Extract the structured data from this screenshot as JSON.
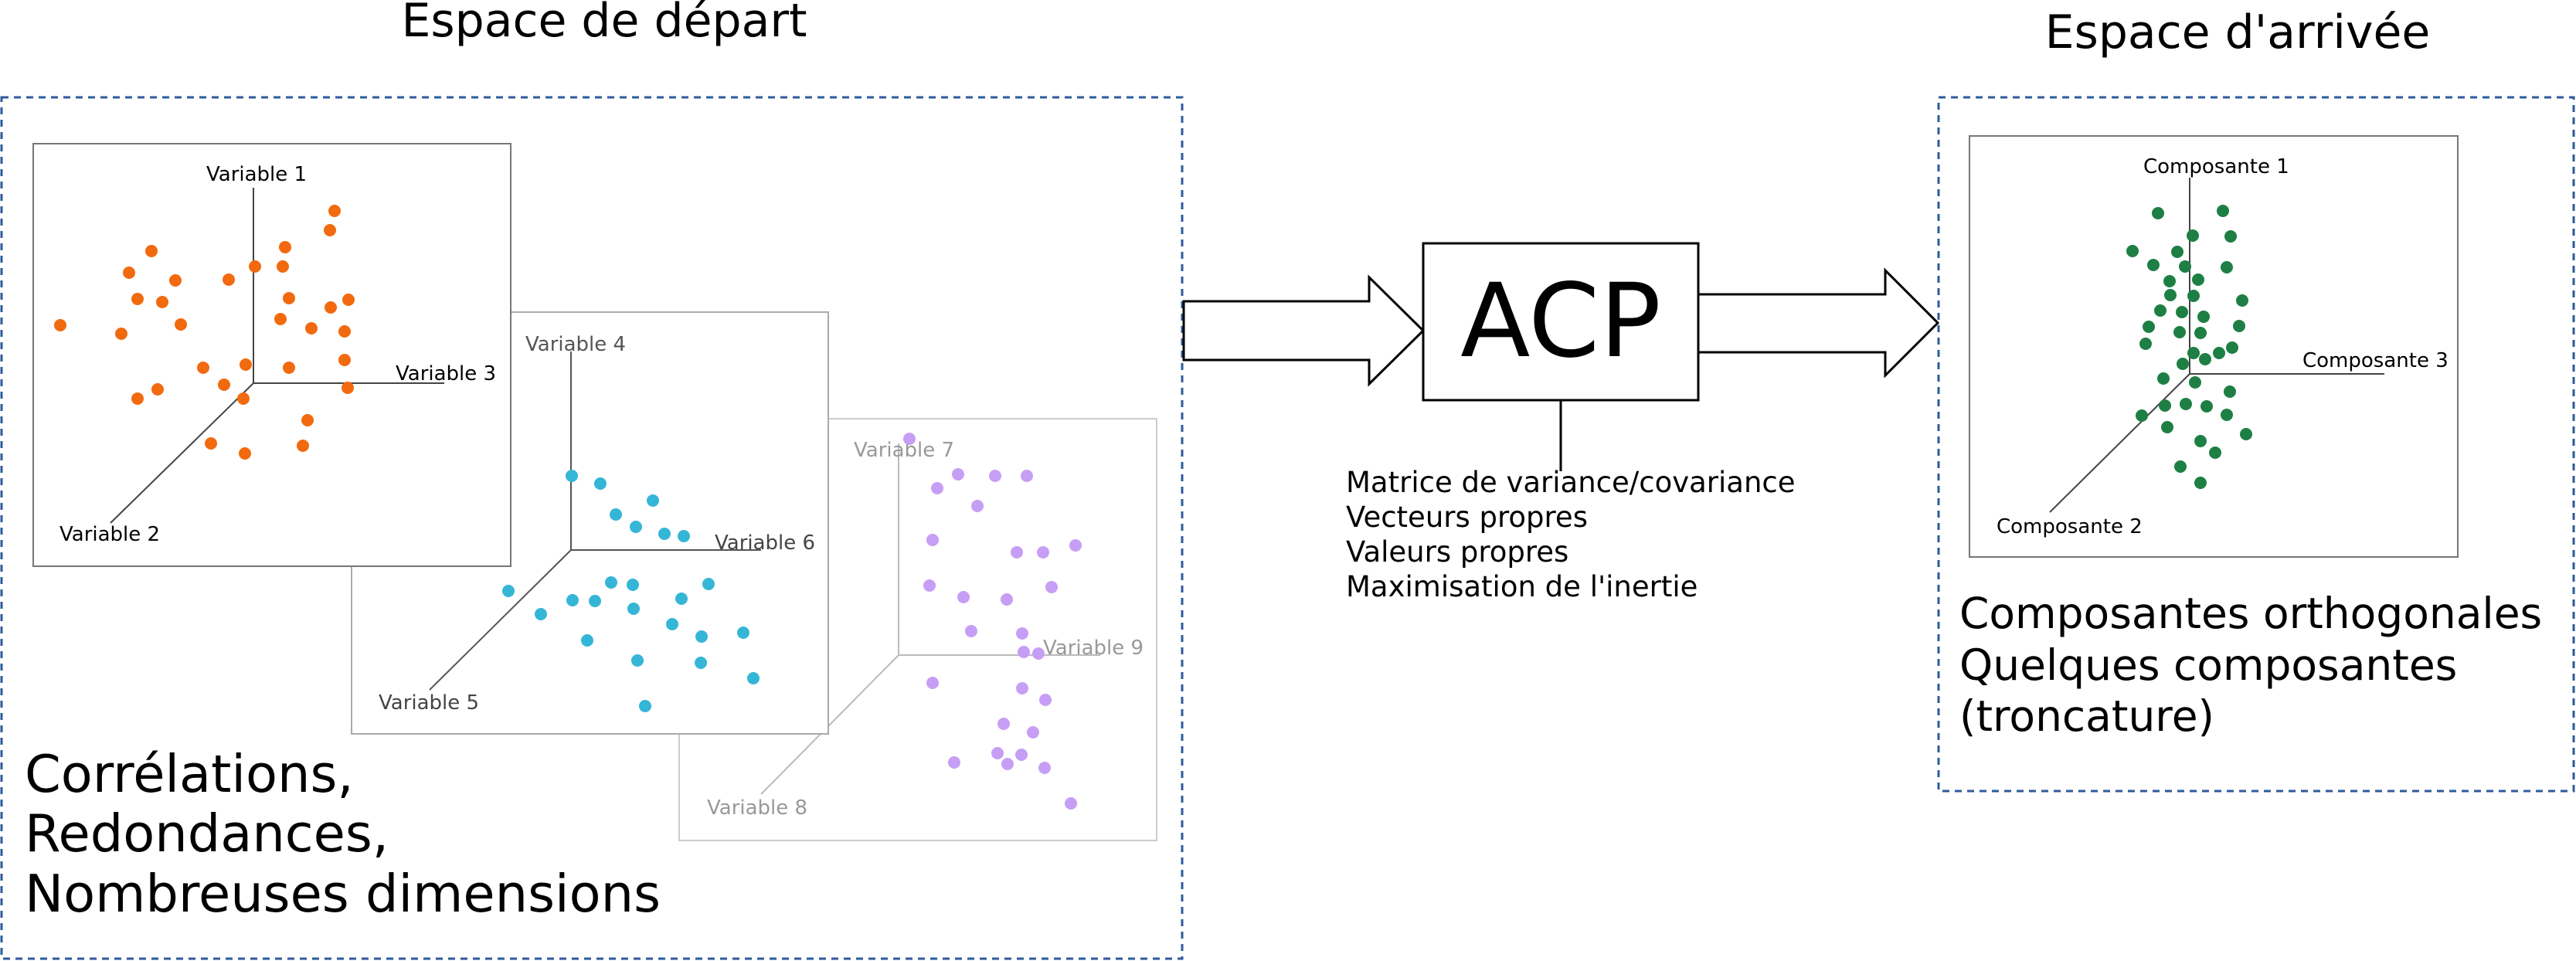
{
  "source_space": {
    "title": "Espace de départ",
    "plots": [
      {
        "axes": [
          "Variable 1",
          "Variable 3",
          "Variable 2"
        ],
        "color": "#f26a0f"
      },
      {
        "axes": [
          "Variable 4",
          "Variable 6",
          "Variable 5"
        ],
        "color": "#35b6d6"
      },
      {
        "axes": [
          "Variable 7",
          "Variable 9",
          "Variable 8"
        ],
        "color": "#c79ef5"
      }
    ],
    "caption": [
      "Corrélations,",
      "Redondances,",
      "Nombreuses dimensions"
    ]
  },
  "method": {
    "label": "ACP",
    "notes": [
      "Matrice de variance/covariance",
      "Vecteurs propres",
      "Valeurs propres",
      "Maximisation de l'inertie"
    ]
  },
  "target_space": {
    "title": "Espace d'arrivée",
    "plot": {
      "axes": [
        "Composante 1",
        "Composante 3",
        "Composante 2"
      ],
      "color": "#1e7f44"
    },
    "caption": [
      "Composantes orthogonales",
      "Quelques composantes",
      "(troncature)"
    ]
  }
}
